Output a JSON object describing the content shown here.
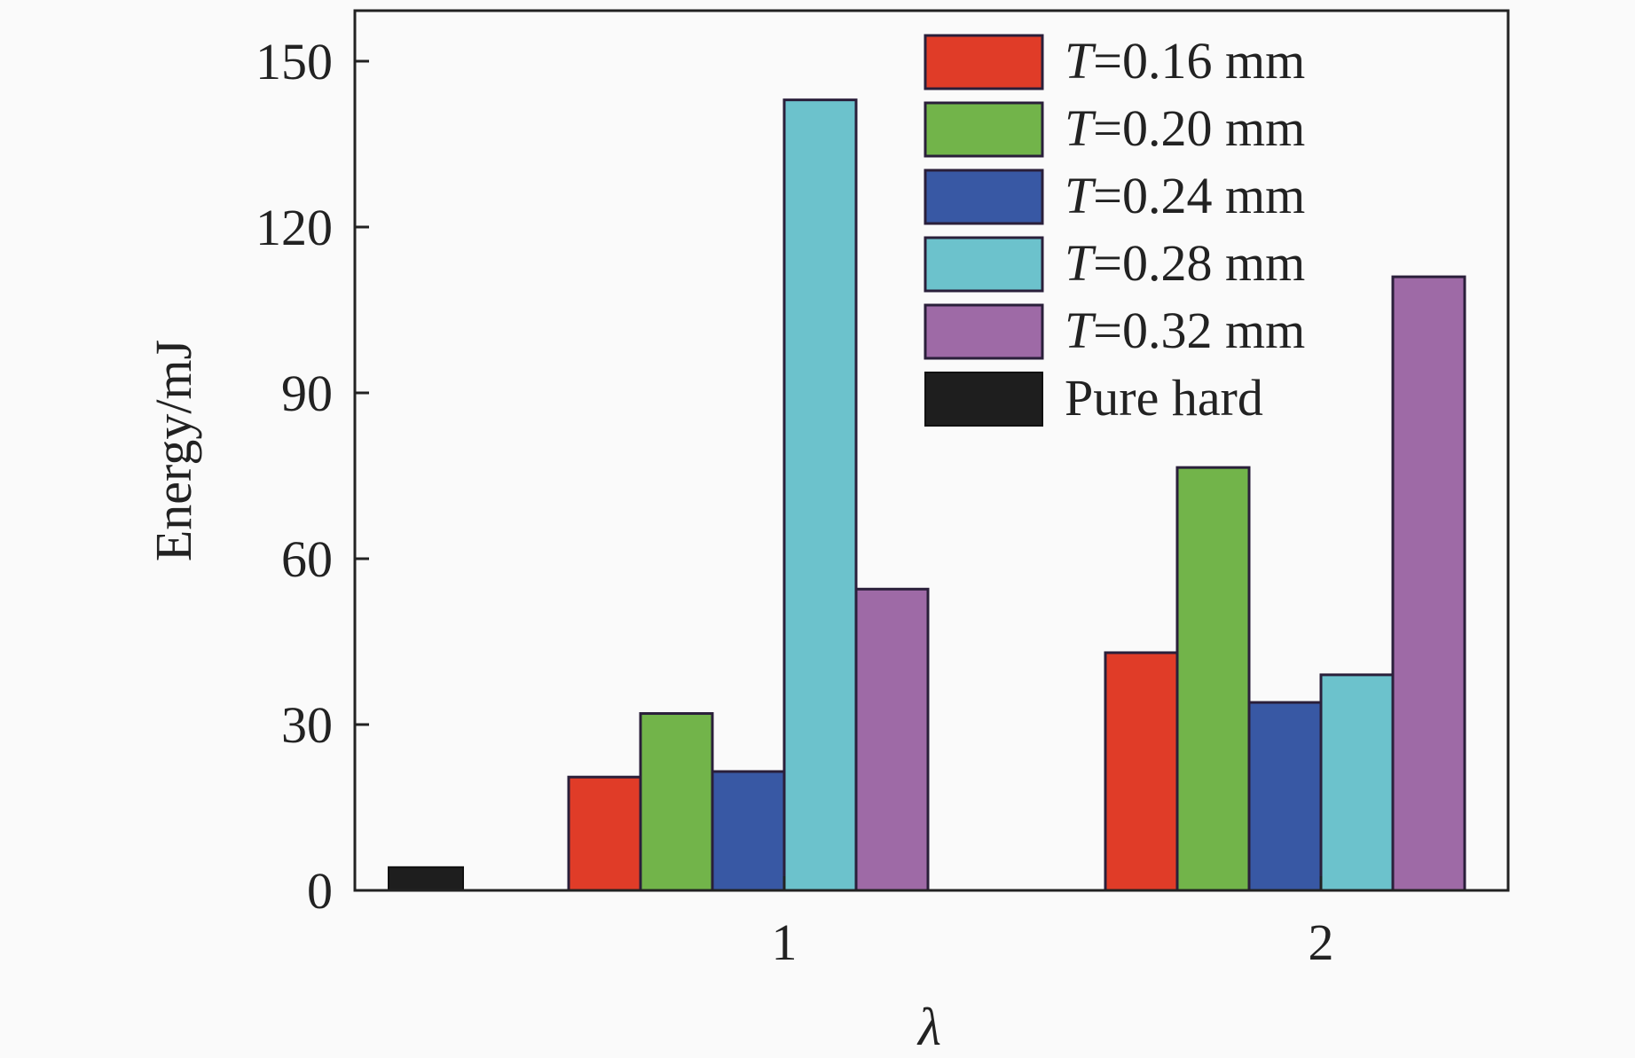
{
  "chart_data": {
    "type": "bar",
    "xlabel": "λ",
    "ylabel": "Energy/mJ",
    "ylim": [
      0,
      160
    ],
    "yticks": [
      0,
      30,
      60,
      90,
      120,
      150
    ],
    "categories": [
      "1",
      "2"
    ],
    "legend_position": "top-right",
    "grid": false,
    "series": [
      {
        "name": "T=0.16 mm",
        "label_italic": "T",
        "label_rest": "=0.16 mm",
        "color": "#e03c28",
        "values": [
          20.5,
          43
        ]
      },
      {
        "name": "T=0.20 mm",
        "label_italic": "T",
        "label_rest": "=0.20 mm",
        "color": "#72b44a",
        "values": [
          32,
          76.5
        ]
      },
      {
        "name": "T=0.24 mm",
        "label_italic": "T",
        "label_rest": "=0.24 mm",
        "color": "#3858a4",
        "values": [
          21.5,
          34
        ]
      },
      {
        "name": "T=0.28 mm",
        "label_italic": "T",
        "label_rest": "=0.28 mm",
        "color": "#6cc2cc",
        "values": [
          143,
          39
        ]
      },
      {
        "name": "T=0.32 mm",
        "label_italic": "T",
        "label_rest": "=0.32 mm",
        "color": "#9e6aa6",
        "values": [
          54.5,
          111
        ]
      }
    ],
    "reference": {
      "name": "Pure hard",
      "color": "#1e1e1e",
      "value": 4.2
    }
  }
}
